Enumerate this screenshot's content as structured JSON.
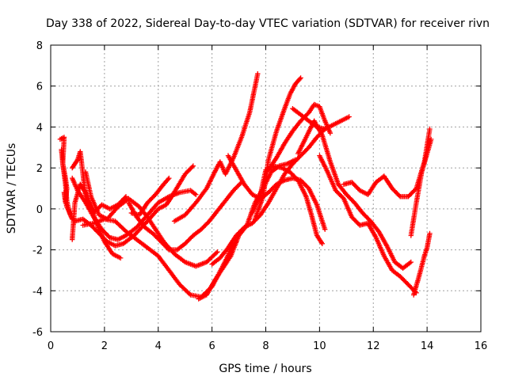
{
  "chart_data": {
    "type": "scatter",
    "title": "Day 338 of 2022, Sidereal Day-to-day VTEC variation (SDTVAR) for receiver rivn",
    "xlabel": "GPS time / hours",
    "ylabel": "SDTVAR / TECUs",
    "xlim": [
      0,
      16
    ],
    "ylim": [
      -6,
      8
    ],
    "x_ticks": [
      0,
      2,
      4,
      6,
      8,
      10,
      12,
      14,
      16
    ],
    "y_ticks": [
      -6,
      -4,
      -2,
      0,
      2,
      4,
      6,
      8
    ],
    "grid": true,
    "marker": "+",
    "color": "#ff0000",
    "series": [
      {
        "x": [
          0.35,
          0.5,
          0.45,
          0.55,
          0.6,
          0.7,
          0.8
        ],
        "y": [
          3.4,
          3.5,
          2.2,
          1.2,
          0.4,
          -0.2,
          -0.5
        ]
      },
      {
        "x": [
          0.4,
          0.45,
          0.55,
          0.6,
          0.55,
          0.5,
          0.6,
          0.75
        ],
        "y": [
          2.9,
          2.2,
          1.5,
          1.0,
          0.3,
          0.8,
          0.1,
          -0.3
        ]
      },
      {
        "x": [
          0.8,
          0.9,
          1.1,
          1.3,
          1.5,
          1.7,
          2.0,
          2.3,
          2.6
        ],
        "y": [
          -1.5,
          0.3,
          1.2,
          0.8,
          0.1,
          -0.7,
          -1.6,
          -2.2,
          -2.4
        ]
      },
      {
        "x": [
          0.8,
          1.0,
          1.1,
          1.3,
          1.6,
          1.9,
          2.2,
          2.5,
          2.8
        ],
        "y": [
          2.0,
          2.4,
          2.8,
          0.6,
          -0.2,
          0.2,
          0.0,
          0.2,
          0.6
        ]
      },
      {
        "x": [
          0.8,
          1.0,
          1.3,
          1.6,
          1.9,
          2.2,
          2.5,
          2.8,
          3.2,
          3.6,
          4.0,
          4.4,
          4.8,
          5.2,
          5.4
        ],
        "y": [
          1.5,
          0.9,
          0.3,
          -0.4,
          -1.0,
          -1.4,
          -1.5,
          -1.3,
          -0.9,
          -0.3,
          0.3,
          0.6,
          0.8,
          0.9,
          0.7
        ]
      },
      {
        "x": [
          0.9,
          1.2,
          1.5,
          1.8,
          2.1,
          2.4,
          2.7,
          3.1,
          3.6,
          4.0,
          4.3,
          4.5,
          5.0,
          5.3
        ],
        "y": [
          -0.6,
          -0.5,
          -0.8,
          -1.2,
          -1.6,
          -1.8,
          -1.7,
          -1.3,
          -0.6,
          0.0,
          0.2,
          0.6,
          1.7,
          2.1
        ]
      },
      {
        "x": [
          1.3,
          1.5,
          1.8,
          2.1,
          2.5,
          2.9,
          3.3,
          3.6,
          3.9,
          4.2,
          4.6,
          5.0,
          5.4,
          5.8,
          6.2
        ],
        "y": [
          1.8,
          0.6,
          -0.3,
          -0.5,
          0.1,
          0.5,
          0.1,
          -0.4,
          -1.0,
          -1.6,
          -2.2,
          -2.6,
          -2.8,
          -2.6,
          -2.1
        ]
      },
      {
        "x": [
          1.2,
          1.6,
          2.0,
          2.4,
          2.8,
          3.2,
          3.6,
          4.0,
          4.4,
          4.8,
          5.2,
          5.6,
          6.0,
          6.4,
          6.7,
          6.9
        ],
        "y": [
          -0.8,
          -0.7,
          -0.5,
          -0.6,
          -1.1,
          -1.5,
          -1.9,
          -2.3,
          -3.0,
          -3.7,
          -4.2,
          -4.3,
          -3.8,
          -2.8,
          -2.0,
          -1.6
        ]
      },
      {
        "x": [
          2.9,
          3.2,
          3.5,
          3.8,
          4.1,
          4.4,
          4.7,
          5.0,
          5.3,
          5.6,
          5.9,
          6.2,
          6.5,
          6.8,
          7.1
        ],
        "y": [
          0.3,
          -0.4,
          -0.9,
          -1.2,
          -1.6,
          -2.0,
          -2.0,
          -1.7,
          -1.3,
          -1.0,
          -0.6,
          -0.1,
          0.4,
          0.9,
          1.3
        ]
      },
      {
        "x": [
          3.0,
          3.3,
          3.6,
          3.9,
          4.2,
          4.4
        ],
        "y": [
          -0.2,
          -0.3,
          0.3,
          0.7,
          1.2,
          1.5
        ]
      },
      {
        "x": [
          4.6,
          5.0,
          5.4,
          5.8,
          6.1,
          6.3,
          6.5,
          6.8,
          7.1,
          7.4,
          7.7
        ],
        "y": [
          -0.6,
          -0.3,
          0.3,
          1.0,
          1.8,
          2.3,
          1.7,
          2.5,
          3.5,
          4.7,
          6.6
        ]
      },
      {
        "x": [
          5.5,
          5.8,
          6.1,
          6.4,
          6.7,
          7.0,
          7.3,
          7.6,
          7.9,
          8.2,
          8.5,
          8.8,
          9.1
        ],
        "y": [
          -4.4,
          -4.2,
          -3.5,
          -2.9,
          -2.3,
          -1.3,
          -0.8,
          0.3,
          1.0,
          1.8,
          2.1,
          2.2,
          2.4
        ]
      },
      {
        "x": [
          6.0,
          6.3,
          6.6,
          6.9,
          7.2,
          7.5,
          7.8,
          8.1,
          8.4,
          8.7,
          9.0,
          9.3,
          9.6,
          9.9,
          10.2
        ],
        "y": [
          -2.7,
          -2.4,
          -1.9,
          -1.3,
          -0.9,
          -0.7,
          -0.3,
          0.3,
          1.0,
          1.7,
          2.2,
          2.6,
          3.0,
          3.5,
          3.9
        ]
      },
      {
        "x": [
          6.6,
          6.9,
          7.2,
          7.5,
          7.8,
          8.1,
          8.4,
          8.7,
          9.0,
          9.3,
          9.6,
          9.9,
          10.2
        ],
        "y": [
          2.6,
          1.9,
          1.2,
          0.7,
          0.5,
          0.8,
          1.2,
          1.4,
          1.5,
          1.4,
          1.0,
          0.2,
          -1.0
        ]
      },
      {
        "x": [
          7.5,
          7.8,
          8.0,
          8.3,
          8.6,
          8.9,
          9.2,
          9.5,
          9.7,
          9.9,
          10.1
        ],
        "y": [
          -0.2,
          0.7,
          1.9,
          2.1,
          2.0,
          1.8,
          1.4,
          0.6,
          -0.3,
          -1.3,
          -1.7
        ]
      },
      {
        "x": [
          7.6,
          7.9,
          8.1,
          8.4,
          8.7,
          8.9,
          9.1,
          9.3
        ],
        "y": [
          -0.5,
          0.6,
          2.4,
          3.8,
          4.9,
          5.6,
          6.1,
          6.4
        ]
      },
      {
        "x": [
          8.1,
          8.4,
          8.7,
          9.0,
          9.3,
          9.6,
          9.8,
          10.0,
          10.2,
          10.4
        ],
        "y": [
          1.9,
          2.5,
          3.2,
          3.8,
          4.3,
          4.7,
          5.1,
          5.0,
          4.3,
          3.7
        ]
      },
      {
        "x": [
          9.0,
          9.3,
          9.6,
          9.9,
          10.2,
          10.5,
          10.8,
          11.1
        ],
        "y": [
          4.9,
          4.6,
          4.3,
          4.0,
          3.9,
          4.1,
          4.3,
          4.5
        ]
      },
      {
        "x": [
          9.2,
          9.5,
          9.8,
          10.1,
          10.4,
          10.7,
          11.0,
          11.3,
          11.6,
          11.9,
          12.2,
          12.5,
          12.8,
          13.1,
          13.4
        ],
        "y": [
          2.7,
          3.5,
          4.3,
          3.6,
          2.3,
          1.2,
          0.7,
          0.3,
          -0.2,
          -0.6,
          -1.1,
          -1.8,
          -2.6,
          -2.9,
          -2.6
        ]
      },
      {
        "x": [
          10.0,
          10.3,
          10.6,
          10.9,
          11.2,
          11.5,
          11.8,
          12.1,
          12.4,
          12.7,
          13.0,
          13.3,
          13.6
        ],
        "y": [
          2.6,
          1.8,
          0.9,
          0.5,
          -0.4,
          -0.8,
          -0.7,
          -1.4,
          -2.3,
          -3.0,
          -3.3,
          -3.7,
          -4.1
        ]
      },
      {
        "x": [
          10.9,
          11.2,
          11.5,
          11.8,
          12.1,
          12.4,
          12.7,
          13.0,
          13.3,
          13.6,
          13.9,
          14.1
        ],
        "y": [
          1.2,
          1.3,
          0.9,
          0.7,
          1.3,
          1.6,
          1.0,
          0.6,
          0.6,
          1.0,
          2.3,
          3.9
        ]
      },
      {
        "x": [
          13.5,
          13.7,
          13.9,
          14.0,
          14.1
        ],
        "y": [
          -4.2,
          -3.3,
          -2.3,
          -1.9,
          -1.2
        ]
      },
      {
        "x": [
          13.4,
          13.6,
          13.8,
          14.0,
          14.15
        ],
        "y": [
          -1.3,
          0.3,
          1.8,
          2.7,
          3.4
        ]
      }
    ]
  }
}
